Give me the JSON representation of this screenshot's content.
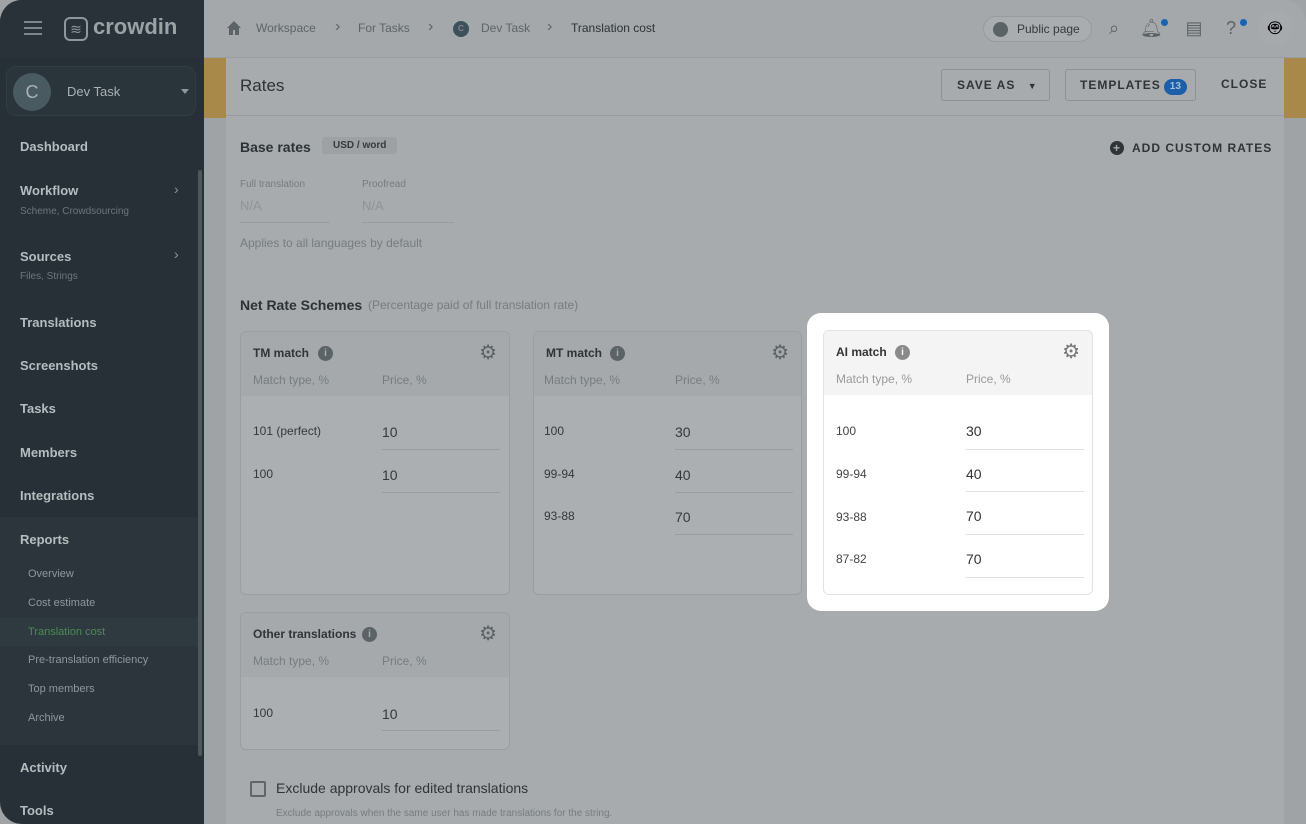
{
  "sidebar": {
    "logo": "crowdin",
    "project": {
      "initial": "C",
      "name": "Dev Task"
    },
    "items": [
      {
        "label": "Dashboard"
      },
      {
        "label": "Workflow",
        "sub": "Scheme, Crowdsourcing"
      },
      {
        "label": "Sources",
        "sub": "Files, Strings"
      },
      {
        "label": "Translations"
      },
      {
        "label": "Screenshots"
      },
      {
        "label": "Tasks"
      },
      {
        "label": "Members"
      },
      {
        "label": "Integrations"
      },
      {
        "label": "Reports"
      },
      {
        "label": "Activity"
      },
      {
        "label": "Tools"
      }
    ],
    "reports": [
      "Overview",
      "Cost estimate",
      "Translation cost",
      "Pre-translation efficiency",
      "Top members",
      "Archive"
    ],
    "active_report": "Translation cost",
    "active_color": "#4e8a55"
  },
  "topbar": {
    "breadcrumb": [
      "Workspace",
      "For Tasks",
      "Dev Task",
      "Translation cost"
    ],
    "public_page": "Public page"
  },
  "header": {
    "title": "Rates",
    "save_as": "SAVE AS",
    "templates": "TEMPLATES",
    "templates_count": "13",
    "close": "CLOSE"
  },
  "base": {
    "title": "Base rates",
    "unit": "USD / word",
    "full_label": "Full translation",
    "full_value": "N/A",
    "proof_label": "Proofread",
    "proof_value": "N/A",
    "note": "Applies to all languages by default",
    "add_custom": "ADD CUSTOM RATES"
  },
  "schemes": {
    "title": "Net Rate Schemes",
    "subtitle": "(Percentage paid of full translation rate)",
    "col_match": "Match type, %",
    "col_price": "Price, %",
    "tm": {
      "title": "TM match",
      "rows": [
        {
          "match": "101 (perfect)",
          "price": "10"
        },
        {
          "match": "100",
          "price": "10"
        }
      ]
    },
    "mt": {
      "title": "MT match",
      "rows": [
        {
          "match": "100",
          "price": "30"
        },
        {
          "match": "99-94",
          "price": "40"
        },
        {
          "match": "93-88",
          "price": "70"
        }
      ]
    },
    "ai": {
      "title": "AI match",
      "rows": [
        {
          "match": "100",
          "price": "30"
        },
        {
          "match": "99-94",
          "price": "40"
        },
        {
          "match": "93-88",
          "price": "70"
        },
        {
          "match": "87-82",
          "price": "70"
        }
      ]
    },
    "other": {
      "title": "Other translations",
      "rows": [
        {
          "match": "100",
          "price": "10"
        }
      ]
    }
  },
  "exclude": {
    "label": "Exclude approvals for edited translations",
    "hint": "Exclude approvals when the same user has made translations for the string.",
    "checked": false
  }
}
